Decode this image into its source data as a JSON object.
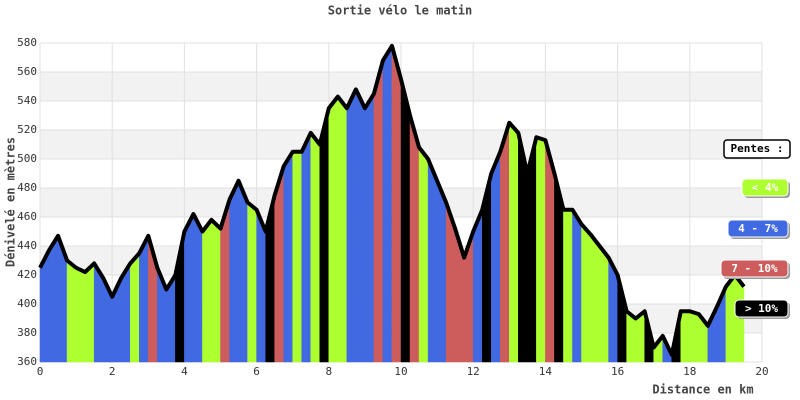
{
  "chart_data": {
    "type": "area",
    "title": "Sortie vélo le matin",
    "x_label": "Distance en km",
    "y_label": "Dénivelé en mètres",
    "x": [
      0,
      0.25,
      0.5,
      0.75,
      1,
      1.25,
      1.5,
      1.75,
      2,
      2.25,
      2.5,
      2.75,
      3,
      3.25,
      3.5,
      3.75,
      4,
      4.25,
      4.5,
      4.75,
      5,
      5.25,
      5.5,
      5.75,
      6,
      6.25,
      6.5,
      6.75,
      7,
      7.25,
      7.5,
      7.75,
      8,
      8.25,
      8.5,
      8.75,
      9,
      9.25,
      9.5,
      9.75,
      10,
      10.25,
      10.5,
      10.75,
      11,
      11.25,
      11.5,
      11.75,
      12,
      12.25,
      12.5,
      12.75,
      13,
      13.25,
      13.5,
      13.75,
      14,
      14.25,
      14.5,
      14.75,
      15,
      15.25,
      15.5,
      15.75,
      16,
      16.25,
      16.5,
      16.75,
      17,
      17.25,
      17.5,
      17.75,
      18,
      18.25,
      18.5,
      18.75,
      19,
      19.25,
      19.5
    ],
    "y": [
      425,
      437,
      447,
      430,
      425,
      422,
      428,
      418,
      405,
      418,
      428,
      435,
      447,
      425,
      410,
      420,
      450,
      462,
      450,
      458,
      452,
      472,
      485,
      470,
      465,
      450,
      475,
      495,
      505,
      505,
      518,
      510,
      535,
      543,
      535,
      548,
      535,
      545,
      568,
      578,
      555,
      530,
      508,
      500,
      485,
      470,
      452,
      432,
      450,
      465,
      490,
      505,
      525,
      518,
      490,
      515,
      513,
      490,
      465,
      465,
      455,
      448,
      440,
      432,
      420,
      395,
      390,
      395,
      370,
      378,
      365,
      395,
      395,
      393,
      385,
      398,
      412,
      420,
      412
    ],
    "segment_colors": [
      "#4169e1",
      "#4169e1",
      "#4169e1",
      "#adff2f",
      "#adff2f",
      "#adff2f",
      "#4169e1",
      "#4169e1",
      "#4169e1",
      "#4169e1",
      "#adff2f",
      "#4169e1",
      "#cd5c5c",
      "#4169e1",
      "#4169e1",
      "#000000",
      "#4169e1",
      "#4169e1",
      "#adff2f",
      "#adff2f",
      "#cd5c5c",
      "#4169e1",
      "#4169e1",
      "#adff2f",
      "#4169e1",
      "#000000",
      "#cd5c5c",
      "#4169e1",
      "#adff2f",
      "#4169e1",
      "#adff2f",
      "#000000",
      "#adff2f",
      "#adff2f",
      "#4169e1",
      "#4169e1",
      "#4169e1",
      "#cd5c5c",
      "#4169e1",
      "#cd5c5c",
      "#000000",
      "#cd5c5c",
      "#adff2f",
      "#4169e1",
      "#4169e1",
      "#cd5c5c",
      "#cd5c5c",
      "#cd5c5c",
      "#4169e1",
      "#000000",
      "#4169e1",
      "#cd5c5c",
      "#adff2f",
      "#000000",
      "#000000",
      "#adff2f",
      "#cd5c5c",
      "#000000",
      "#adff2f",
      "#4169e1",
      "#adff2f",
      "#adff2f",
      "#adff2f",
      "#4169e1",
      "#000000",
      "#adff2f",
      "#adff2f",
      "#000000",
      "#adff2f",
      "#4169e1",
      "#000000",
      "#adff2f",
      "#adff2f",
      "#adff2f",
      "#4169e1",
      "#4169e1",
      "#adff2f",
      "#adff2f"
    ],
    "line_color": "#000000",
    "xlim": [
      0,
      20
    ],
    "ylim": [
      360,
      580
    ],
    "xticks": [
      0,
      2,
      4,
      6,
      8,
      10,
      12,
      14,
      16,
      18,
      20
    ],
    "yticks": [
      360,
      380,
      400,
      420,
      440,
      460,
      480,
      500,
      520,
      540,
      560,
      580
    ],
    "grid": true,
    "legend": {
      "title": "Pentes :",
      "entries": [
        {
          "label": "< 4%",
          "color": "#adff2f"
        },
        {
          "label": "4 - 7%",
          "color": "#4169e1"
        },
        {
          "label": "7 - 10%",
          "color": "#cd5c5c"
        },
        {
          "label": "> 10%",
          "color": "#000000"
        }
      ]
    }
  }
}
